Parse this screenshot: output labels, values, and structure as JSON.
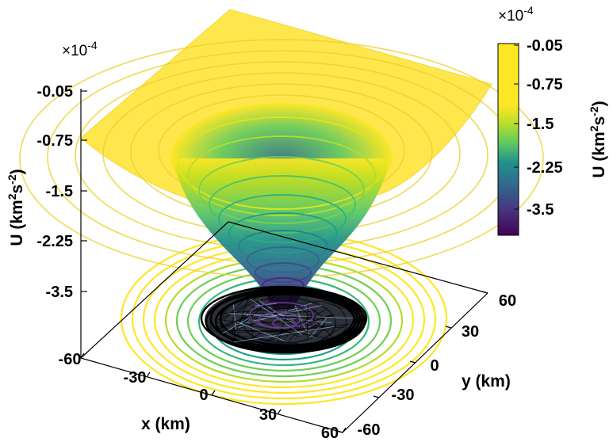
{
  "chart_data": {
    "type": "surface",
    "x": {
      "label": "x (km)",
      "range": [
        -60,
        60
      ],
      "ticks": [
        "-60",
        "-30",
        "0",
        "30",
        "60"
      ]
    },
    "y": {
      "label": "y (km)",
      "range": [
        -60,
        60
      ],
      "ticks": [
        "-60",
        "-30",
        "0",
        "30",
        "60"
      ]
    },
    "z": {
      "label_main": "U (km",
      "label_sup1": "2",
      "label_mid": "s",
      "label_sup2": "-2",
      "label_end": ")",
      "multiplier": "×10",
      "multiplier_exp": "-4",
      "ticks": [
        "-0.05",
        "-0.75",
        "-1.5",
        "-2.25",
        "-3.5"
      ]
    },
    "colorbar": {
      "label_main": "U (km",
      "label_sup1": "2",
      "label_mid": "s",
      "label_sup2": "-2",
      "label_end": ")",
      "multiplier": "×10",
      "multiplier_exp": "-4",
      "ticks": [
        "-0.05",
        "-0.75",
        "-1.5",
        "-2.25",
        "-3.5"
      ],
      "colormap": [
        "#fde725",
        "#b5de2b",
        "#6ece58",
        "#35b779",
        "#1f9e89",
        "#26828e",
        "#31688e",
        "#3e4989",
        "#482878",
        "#440154"
      ]
    },
    "grid": false
  }
}
